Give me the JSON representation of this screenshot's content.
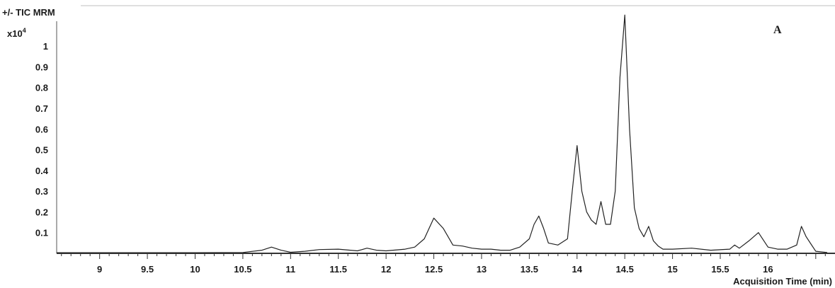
{
  "chart_data": {
    "type": "line",
    "title": "+/- TIC MRM",
    "multiplier_base": "x10",
    "multiplier_exp": "4",
    "panel_label": "A",
    "xlabel": "Acquisition Time (min)",
    "ylabel": "",
    "xlim": [
      8.55,
      16.62
    ],
    "ylim": [
      0,
      1.195
    ],
    "grid": false,
    "line_color": "#222222",
    "x_ticks": [
      9,
      9.5,
      10,
      10.5,
      11,
      11.5,
      12,
      12.5,
      13,
      13.5,
      14,
      14.5,
      15,
      15.5,
      16
    ],
    "x_tick_labels": [
      "9",
      "9.5",
      "10",
      "10.5",
      "11",
      "11.5",
      "12",
      "12.5",
      "13",
      "13.5",
      "14",
      "14.5",
      "15",
      "15.5",
      "16"
    ],
    "y_ticks": [
      0.1,
      0.2,
      0.3,
      0.4,
      0.5,
      0.6,
      0.7,
      0.8,
      0.9,
      1
    ],
    "y_tick_labels": [
      "0.1",
      "0.2",
      "0.3",
      "0.4",
      "0.5",
      "0.6",
      "0.7",
      "0.8",
      "0.9",
      "1"
    ],
    "series": [
      {
        "x": [
          8.55,
          9.0,
          9.5,
          10.0,
          10.5,
          10.7,
          10.8,
          10.9,
          11.0,
          11.15,
          11.3,
          11.5,
          11.7,
          11.8,
          11.9,
          12.0,
          12.2,
          12.3,
          12.4,
          12.5,
          12.6,
          12.7,
          12.8,
          12.9,
          13.0,
          13.1,
          13.2,
          13.3,
          13.4,
          13.5,
          13.55,
          13.6,
          13.65,
          13.7,
          13.8,
          13.9,
          13.95,
          14.0,
          14.05,
          14.1,
          14.15,
          14.2,
          14.25,
          14.3,
          14.35,
          14.4,
          14.45,
          14.5,
          14.55,
          14.6,
          14.65,
          14.7,
          14.75,
          14.8,
          14.85,
          14.9,
          15.0,
          15.2,
          15.4,
          15.6,
          15.65,
          15.7,
          15.8,
          15.9,
          16.0,
          16.1,
          16.2,
          16.3,
          16.35,
          16.4,
          16.5,
          16.62
        ],
        "y": [
          0.003,
          0.003,
          0.003,
          0.003,
          0.004,
          0.015,
          0.03,
          0.015,
          0.005,
          0.01,
          0.018,
          0.02,
          0.012,
          0.025,
          0.015,
          0.012,
          0.02,
          0.03,
          0.07,
          0.17,
          0.12,
          0.04,
          0.035,
          0.025,
          0.02,
          0.02,
          0.015,
          0.015,
          0.03,
          0.07,
          0.14,
          0.18,
          0.12,
          0.05,
          0.04,
          0.07,
          0.3,
          0.52,
          0.3,
          0.2,
          0.16,
          0.14,
          0.25,
          0.14,
          0.14,
          0.3,
          0.85,
          1.15,
          0.6,
          0.22,
          0.12,
          0.08,
          0.13,
          0.06,
          0.035,
          0.02,
          0.02,
          0.025,
          0.015,
          0.02,
          0.04,
          0.025,
          0.06,
          0.1,
          0.03,
          0.02,
          0.02,
          0.04,
          0.13,
          0.08,
          0.01,
          0.004
        ]
      }
    ]
  }
}
